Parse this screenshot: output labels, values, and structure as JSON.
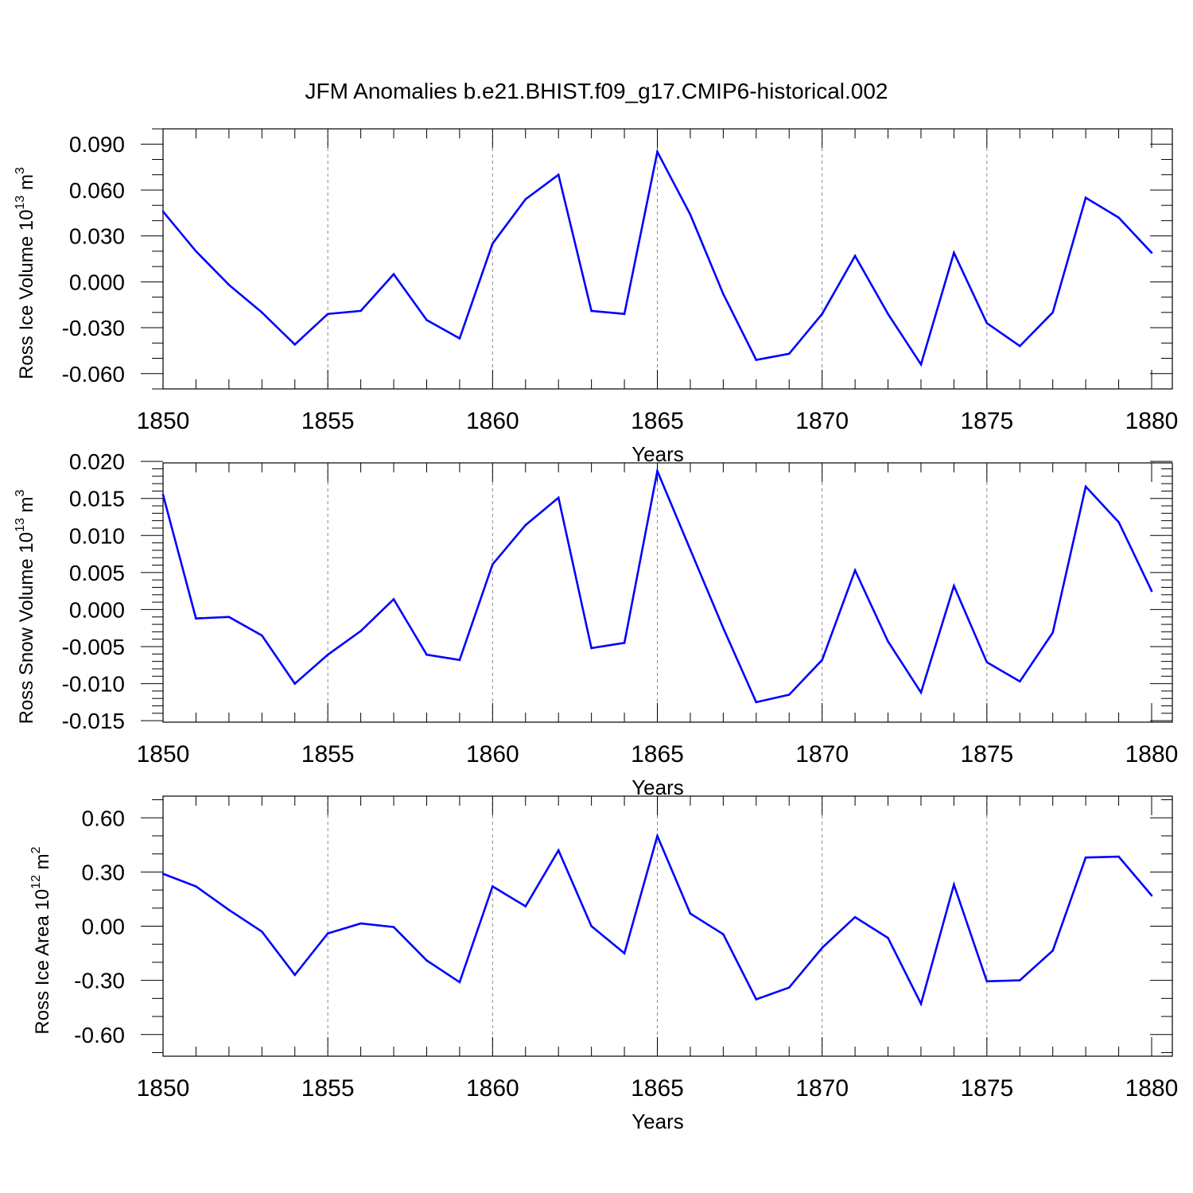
{
  "title": "JFM Anomalies b.e21.BHIST.f09_g17.CMIP6-historical.002",
  "line_color": "#0000ff",
  "chart_data": [
    {
      "type": "line",
      "name": "ross-ice-volume",
      "ylabel_main": "Ross Ice Volume 10",
      "ylabel_sup": "13",
      "ylabel_unit": " m",
      "ylabel_unit_sup": "3",
      "xlabel": "Years",
      "xlim": [
        1850,
        1880
      ],
      "ylim": [
        -0.07,
        0.1
      ],
      "xticks": [
        1850,
        1855,
        1860,
        1865,
        1870,
        1875,
        1880
      ],
      "xtick_labels": [
        "1850",
        "1855",
        "1860",
        "1865",
        "1870",
        "1875",
        "1880"
      ],
      "yticks": [
        0.09,
        0.06,
        0.03,
        0.0,
        -0.03,
        -0.06
      ],
      "ytick_labels": [
        "0.090",
        "0.060",
        "0.030",
        "0.000",
        "-0.030",
        "-0.060"
      ],
      "yminor_step": 0.01,
      "x": [
        1850,
        1851,
        1852,
        1853,
        1854,
        1855,
        1856,
        1857,
        1858,
        1859,
        1860,
        1861,
        1862,
        1863,
        1864,
        1865,
        1866,
        1867,
        1868,
        1869,
        1870,
        1871,
        1872,
        1873,
        1874,
        1875,
        1876,
        1877,
        1878,
        1879,
        1880
      ],
      "values": [
        0.046,
        0.02,
        -0.002,
        -0.02,
        -0.041,
        -0.021,
        -0.019,
        0.005,
        -0.025,
        -0.037,
        0.025,
        0.054,
        0.07,
        -0.019,
        -0.021,
        0.085,
        0.044,
        -0.008,
        -0.051,
        -0.047,
        -0.021,
        0.017,
        -0.021,
        -0.054,
        0.019,
        -0.027,
        -0.042,
        -0.02,
        0.055,
        0.042,
        0.019
      ]
    },
    {
      "type": "line",
      "name": "ross-snow-volume",
      "ylabel_main": "Ross Snow Volume 10",
      "ylabel_sup": "13",
      "ylabel_unit": " m",
      "ylabel_unit_sup": "3",
      "xlabel": "Years",
      "xlim": [
        1850,
        1880
      ],
      "ylim": [
        -0.0152,
        0.0198
      ],
      "xticks": [
        1850,
        1855,
        1860,
        1865,
        1870,
        1875,
        1880
      ],
      "xtick_labels": [
        "1850",
        "1855",
        "1860",
        "1865",
        "1870",
        "1875",
        "1880"
      ],
      "yticks": [
        0.02,
        0.015,
        0.01,
        0.005,
        0.0,
        -0.005,
        -0.01,
        -0.015
      ],
      "ytick_labels": [
        "0.020",
        "0.015",
        "0.010",
        "0.005",
        "0.000",
        "-0.005",
        "-0.010",
        "-0.015"
      ],
      "yminor_step": 0.001,
      "x": [
        1850,
        1851,
        1852,
        1853,
        1854,
        1855,
        1856,
        1857,
        1858,
        1859,
        1860,
        1861,
        1862,
        1863,
        1864,
        1865,
        1866,
        1867,
        1868,
        1869,
        1870,
        1871,
        1872,
        1873,
        1874,
        1875,
        1876,
        1877,
        1878,
        1879,
        1880
      ],
      "values": [
        0.0155,
        -0.0012,
        -0.001,
        -0.0035,
        -0.01,
        -0.0061,
        -0.0029,
        0.0014,
        -0.0061,
        -0.0068,
        0.0061,
        0.0114,
        0.0151,
        -0.0052,
        -0.0045,
        0.0187,
        0.0081,
        -0.0025,
        -0.0125,
        -0.0115,
        -0.0068,
        0.0053,
        -0.0043,
        -0.0112,
        0.0032,
        -0.0071,
        -0.0097,
        -0.0031,
        0.0166,
        0.0118,
        0.0025
      ]
    },
    {
      "type": "line",
      "name": "ross-ice-area",
      "ylabel_main": "Ross Ice Area 10",
      "ylabel_sup": "12",
      "ylabel_unit": " m",
      "ylabel_unit_sup": "2",
      "xlabel": "Years",
      "xlim": [
        1850,
        1880
      ],
      "ylim": [
        -0.72,
        0.72
      ],
      "xticks": [
        1850,
        1855,
        1860,
        1865,
        1870,
        1875,
        1880
      ],
      "xtick_labels": [
        "1850",
        "1855",
        "1860",
        "1865",
        "1870",
        "1875",
        "1880"
      ],
      "yticks": [
        0.6,
        0.3,
        0.0,
        -0.3,
        -0.6
      ],
      "ytick_labels": [
        "0.60",
        "0.30",
        "0.00",
        "-0.30",
        "-0.60"
      ],
      "yminor_step": 0.1,
      "x": [
        1850,
        1851,
        1852,
        1853,
        1854,
        1855,
        1856,
        1857,
        1858,
        1859,
        1860,
        1861,
        1862,
        1863,
        1864,
        1865,
        1866,
        1867,
        1868,
        1869,
        1870,
        1871,
        1872,
        1873,
        1874,
        1875,
        1876,
        1877,
        1878,
        1879,
        1880
      ],
      "values": [
        0.29,
        0.22,
        0.09,
        -0.03,
        -0.27,
        -0.04,
        0.015,
        -0.005,
        -0.19,
        -0.31,
        0.22,
        0.11,
        0.42,
        0.0,
        -0.15,
        0.5,
        0.07,
        -0.045,
        -0.405,
        -0.34,
        -0.12,
        0.05,
        -0.065,
        -0.43,
        0.23,
        -0.305,
        -0.3,
        -0.135,
        0.38,
        0.385,
        0.17
      ]
    }
  ]
}
